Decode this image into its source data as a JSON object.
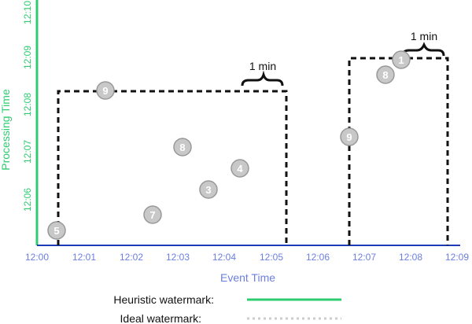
{
  "diagram": {
    "x_axis_title": "Event Time",
    "y_axis_title": "Processing Time",
    "x_ticks": [
      "12:00",
      "12:01",
      "12:02",
      "12:03",
      "12:04",
      "12:05",
      "12:06",
      "12:07",
      "12:08",
      "12:09"
    ],
    "y_ticks": [
      "12:06",
      "12:07",
      "12:08",
      "12:09",
      "12:10"
    ],
    "annotations": [
      "1 min",
      "1 min"
    ],
    "points": [
      {
        "label": "5",
        "event_time": "12:00.4",
        "processing_time": "12:05.35"
      },
      {
        "label": "9",
        "event_time": "12:01.45",
        "processing_time": "12:08.3"
      },
      {
        "label": "8",
        "event_time": "12:03.1",
        "processing_time": "12:07.1"
      },
      {
        "label": "7",
        "event_time": "12:02.45",
        "processing_time": "12:05.7"
      },
      {
        "label": "3",
        "event_time": "12:03.65",
        "processing_time": "12:06.2"
      },
      {
        "label": "4",
        "event_time": "12:04.3",
        "processing_time": "12:06.65"
      },
      {
        "label": "9",
        "event_time": "12:06.7",
        "processing_time": "12:07.35"
      },
      {
        "label": "8",
        "event_time": "12:07.5",
        "processing_time": "12:08.8"
      },
      {
        "label": "1",
        "event_time": "12:07.85",
        "processing_time": "12:09.0"
      }
    ],
    "colors": {
      "heuristic": "#2ecc71",
      "ideal": "#cccccc",
      "event_axis": "#6b7fe0",
      "point_fill": "#c8c8c8",
      "point_stroke": "#999999"
    }
  },
  "legend": {
    "heuristic_label": "Heuristic watermark:",
    "ideal_label": "Ideal watermark:"
  }
}
